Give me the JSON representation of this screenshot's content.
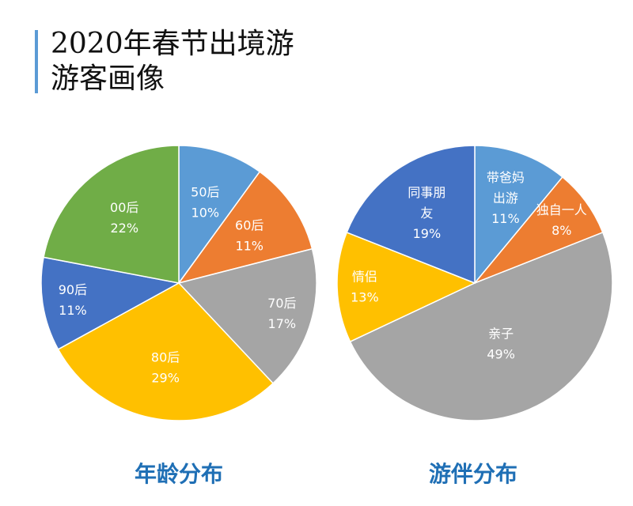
{
  "header": {
    "line1": "2020年春节出境游",
    "line2": "游客画像"
  },
  "colors": {
    "accent_bar": "#5b9bd5",
    "caption": "#1f6fb5"
  },
  "chart_data": [
    {
      "type": "pie",
      "title": "年龄分布",
      "start": "top, clockwise",
      "slices": [
        {
          "label": "50后",
          "value": 10,
          "display": "10%",
          "color": "#5b9bd5"
        },
        {
          "label": "60后",
          "value": 11,
          "display": "11%",
          "color": "#ed7d31"
        },
        {
          "label": "70后",
          "value": 17,
          "display": "17%",
          "color": "#a5a5a5"
        },
        {
          "label": "80后",
          "value": 29,
          "display": "29%",
          "color": "#ffc000"
        },
        {
          "label": "90后",
          "value": 11,
          "display": "11%",
          "color": "#4472c4"
        },
        {
          "label": "00后",
          "value": 22,
          "display": "22%",
          "color": "#70ad47"
        }
      ]
    },
    {
      "type": "pie",
      "title": "游伴分布",
      "start": "top, clockwise",
      "slices": [
        {
          "label": "带爸妈出游",
          "value": 11,
          "display": "11%",
          "color": "#5b9bd5"
        },
        {
          "label": "独自一人",
          "value": 8,
          "display": "8%",
          "color": "#ed7d31"
        },
        {
          "label": "亲子",
          "value": 49,
          "display": "49%",
          "color": "#a5a5a5"
        },
        {
          "label": "情侣",
          "value": 13,
          "display": "13%",
          "color": "#ffc000"
        },
        {
          "label": "同事朋友",
          "value": 19,
          "display": "19%",
          "color": "#4472c4"
        }
      ]
    }
  ]
}
